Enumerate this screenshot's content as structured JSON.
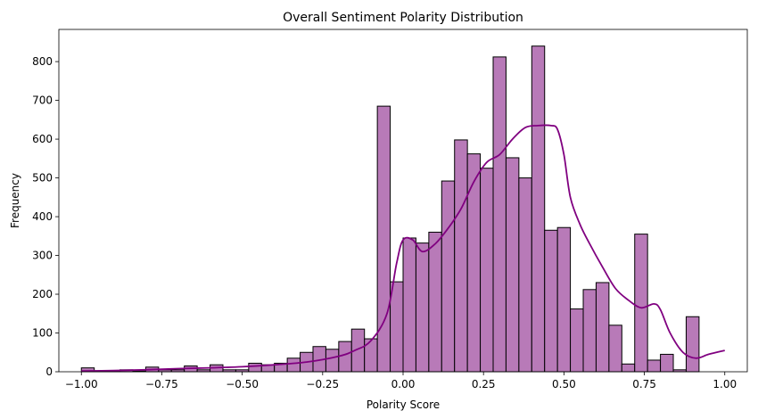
{
  "chart_data": {
    "type": "bar",
    "title": "Overall Sentiment Polarity Distribution",
    "xlabel": "Polarity Score",
    "ylabel": "Frequency",
    "xlim": [
      -1.07,
      1.07
    ],
    "ylim": [
      0,
      883
    ],
    "xticks": [
      {
        "value": -1.0,
        "label": "−1.00"
      },
      {
        "value": -0.75,
        "label": "−0.75"
      },
      {
        "value": -0.5,
        "label": "−0.50"
      },
      {
        "value": -0.25,
        "label": "−0.25"
      },
      {
        "value": 0.0,
        "label": "0.00"
      },
      {
        "value": 0.25,
        "label": "0.25"
      },
      {
        "value": 0.5,
        "label": "0.50"
      },
      {
        "value": 0.75,
        "label": "0.75"
      },
      {
        "value": 1.0,
        "label": "1.00"
      }
    ],
    "yticks": [
      {
        "value": 0,
        "label": "0"
      },
      {
        "value": 100,
        "label": "100"
      },
      {
        "value": 200,
        "label": "200"
      },
      {
        "value": 300,
        "label": "300"
      },
      {
        "value": 400,
        "label": "400"
      },
      {
        "value": 500,
        "label": "500"
      },
      {
        "value": 600,
        "label": "600"
      },
      {
        "value": 700,
        "label": "700"
      },
      {
        "value": 800,
        "label": "800"
      }
    ],
    "grid": false,
    "bins": {
      "start": -1.0,
      "end": 1.0,
      "count": 50
    },
    "values": [
      10,
      2,
      3,
      5,
      2,
      12,
      5,
      5,
      15,
      5,
      18,
      5,
      5,
      22,
      18,
      22,
      35,
      50,
      65,
      58,
      78,
      110,
      85,
      685,
      232,
      345,
      332,
      360,
      492,
      598,
      562,
      525,
      812,
      552,
      500,
      840,
      365,
      372,
      162,
      212,
      230,
      120,
      20,
      355,
      30,
      45,
      5,
      142,
      0,
      0
    ],
    "bar_color": "#b87ab8",
    "bar_edge_color": "#000000",
    "kde": {
      "color": "#800080",
      "x": [
        -1.0,
        -0.9,
        -0.8,
        -0.7,
        -0.6,
        -0.5,
        -0.4,
        -0.3,
        -0.2,
        -0.15,
        -0.1,
        -0.05,
        -0.02,
        0.0,
        0.03,
        0.06,
        0.1,
        0.14,
        0.18,
        0.22,
        0.26,
        0.3,
        0.34,
        0.38,
        0.42,
        0.46,
        0.48,
        0.5,
        0.52,
        0.55,
        0.58,
        0.62,
        0.66,
        0.7,
        0.74,
        0.78,
        0.8,
        0.83,
        0.87,
        0.91,
        0.95,
        1.0
      ],
      "y": [
        2,
        3,
        5,
        8,
        10,
        13,
        18,
        25,
        40,
        55,
        80,
        150,
        280,
        340,
        340,
        310,
        330,
        370,
        420,
        490,
        540,
        560,
        600,
        630,
        635,
        635,
        625,
        560,
        450,
        380,
        330,
        270,
        215,
        185,
        165,
        175,
        160,
        100,
        50,
        35,
        45,
        55
      ]
    }
  }
}
